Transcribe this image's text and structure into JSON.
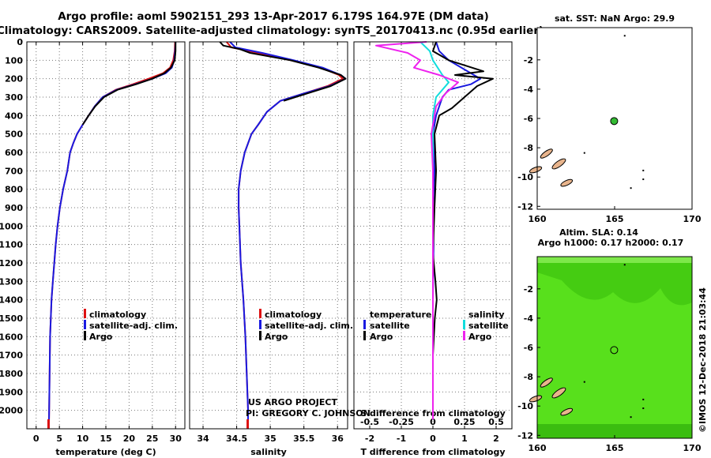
{
  "header": {
    "title_line1": "Argo profile: aoml 5902151_293 13-Apr-2017 6.179S 164.97E (DM data)",
    "title_line2": "Climatology: CARS2009. Satellite-adjusted climatology: synTS_20170413.nc (0.95d earlier)"
  },
  "credits": {
    "line1": "US ARGO PROJECT",
    "line2": "PI: GREGORY C. JOHNSON",
    "imos": "©IMOS 12-Dec-2018 21:03:44"
  },
  "colors": {
    "climatology": "#dd1111",
    "satellite": "#1a1ae0",
    "argo": "#000000",
    "sat_salinity": "#11dddd",
    "argo_salinity": "#ee22ee",
    "land": "#e8b48c",
    "profile_marker": "#33bb33"
  },
  "chart_data": [
    {
      "type": "line",
      "panel": "temperature",
      "xlabel": "temperature (deg C)",
      "ylabel": "",
      "xlim": [
        -2,
        32
      ],
      "ylim": [
        2100,
        0
      ],
      "xticks": [
        0,
        5,
        10,
        15,
        20,
        25,
        30
      ],
      "xtick_labels": [
        "0",
        "5",
        "10",
        "15",
        "20",
        "25",
        "30"
      ],
      "yticks": [
        0,
        100,
        200,
        300,
        400,
        500,
        600,
        700,
        800,
        900,
        1000,
        1100,
        1200,
        1300,
        1400,
        1500,
        1600,
        1700,
        1800,
        1900,
        2000
      ],
      "ytick_labels": [
        "0",
        "100",
        "200",
        "300",
        "400",
        "500",
        "600",
        "700",
        "800",
        "900",
        "1000",
        "1100",
        "1200",
        "1300",
        "1400",
        "1500",
        "1600",
        "1700",
        "1800",
        "1900",
        "2000"
      ],
      "grid": true,
      "legend_position": "lower-right",
      "series": [
        {
          "name": "climatology",
          "color": "#dd1111",
          "x": [
            29.9,
            29.8,
            29.5,
            28.8,
            27.3,
            24.2,
            20.8,
            17.1,
            14.3,
            12.6,
            11.3,
            10.0,
            8.8,
            8.0,
            7.3,
            6.7,
            5.8,
            5.1,
            4.6,
            4.2,
            3.9,
            3.6,
            3.3,
            3.0,
            2.9,
            2.8,
            2.75
          ],
          "y": [
            0,
            50,
            100,
            140,
            170,
            200,
            230,
            260,
            300,
            350,
            400,
            450,
            500,
            550,
            600,
            700,
            800,
            900,
            1000,
            1100,
            1200,
            1300,
            1400,
            1600,
            1800,
            2000,
            2100
          ]
        },
        {
          "name": "satellite-adj. clim.",
          "color": "#1a1ae0",
          "x": [
            30.0,
            29.9,
            29.7,
            29.2,
            27.9,
            25.0,
            21.3,
            17.3,
            14.3,
            12.6,
            11.3,
            10.0,
            8.8,
            8.0,
            7.3,
            6.7,
            5.8,
            5.1,
            4.6,
            4.2,
            3.9,
            3.6,
            3.3,
            3.0,
            2.9,
            2.8,
            2.75
          ],
          "y": [
            0,
            50,
            100,
            140,
            170,
            200,
            230,
            260,
            300,
            350,
            400,
            450,
            500,
            550,
            600,
            700,
            800,
            900,
            1000,
            1100,
            1200,
            1300,
            1400,
            1600,
            1800,
            2000,
            2100
          ]
        },
        {
          "name": "Argo",
          "color": "#000000",
          "x": [
            30.0,
            30.0,
            29.8,
            29.0,
            27.6,
            25.0,
            21.5,
            17.5,
            14.6,
            12.7,
            11.3,
            10.0
          ],
          "y": [
            0,
            50,
            100,
            140,
            170,
            200,
            230,
            260,
            300,
            350,
            400,
            450
          ]
        }
      ]
    },
    {
      "type": "line",
      "panel": "salinity",
      "xlabel": "salinity",
      "xlim": [
        33.8,
        36.15
      ],
      "ylim": [
        2100,
        0
      ],
      "xticks": [
        34,
        34.5,
        35,
        35.5,
        36
      ],
      "xtick_labels": [
        "34",
        "34.5",
        "35",
        "35.5",
        "36"
      ],
      "grid": true,
      "legend_position": "lower-right",
      "series": [
        {
          "name": "climatology",
          "color": "#dd1111",
          "x": [
            34.35,
            34.42,
            34.82,
            35.3,
            35.75,
            36.02,
            36.08,
            35.85,
            35.5,
            35.15,
            34.95,
            34.82,
            34.72,
            34.62,
            34.56,
            34.53,
            34.53,
            34.54,
            34.56,
            34.6,
            34.63,
            34.65,
            34.67,
            34.67
          ],
          "y": [
            0,
            30,
            60,
            100,
            140,
            180,
            200,
            240,
            280,
            320,
            380,
            450,
            500,
            600,
            700,
            800,
            900,
            1000,
            1200,
            1400,
            1600,
            1800,
            2000,
            2100
          ]
        },
        {
          "name": "satellite-adj. clim.",
          "color": "#1a1ae0",
          "x": [
            34.4,
            34.48,
            34.88,
            35.35,
            35.78,
            36.05,
            36.12,
            35.88,
            35.5,
            35.15,
            34.95,
            34.82,
            34.72,
            34.62,
            34.56,
            34.53,
            34.53,
            34.54,
            34.56,
            34.6,
            34.63,
            34.65,
            34.67,
            34.67
          ],
          "y": [
            0,
            30,
            60,
            100,
            140,
            180,
            200,
            240,
            280,
            320,
            380,
            450,
            500,
            600,
            700,
            800,
            900,
            1000,
            1200,
            1400,
            1600,
            1800,
            2000,
            2100
          ]
        },
        {
          "name": "Argo",
          "color": "#000000",
          "x": [
            34.25,
            34.3,
            34.55,
            34.7,
            35.0,
            35.3,
            35.72,
            36.05,
            36.12,
            35.9,
            35.55,
            35.2
          ],
          "y": [
            0,
            20,
            40,
            60,
            80,
            100,
            140,
            180,
            200,
            240,
            280,
            320
          ]
        }
      ]
    },
    {
      "type": "line",
      "panel": "differences",
      "xlabel": "T difference from climatology",
      "xlabel_top": "S difference from climatology",
      "xlim": [
        -2.5,
        2.5
      ],
      "ylim": [
        2100,
        0
      ],
      "xticks": [
        -2,
        -1,
        0,
        1,
        2
      ],
      "xtick_labels": [
        "-2",
        "-1",
        "0",
        "1",
        "2"
      ],
      "xticks_top": [
        -0.5,
        -0.25,
        0,
        0.25,
        0.5
      ],
      "xtick_labels_top": [
        "-0.5",
        "-0.25",
        "0",
        "0.25",
        "0.5"
      ],
      "grid": true,
      "legend_position": "lower-center",
      "legend_group_left": "temperature",
      "legend_group_right": "salinity",
      "series": [
        {
          "name": "satellite",
          "group": "temperature",
          "color": "#1a1ae0",
          "x": [
            0.1,
            0.2,
            0.5,
            1.0,
            1.5,
            1.2,
            0.5,
            0.3,
            0.1,
            0.0,
            0.05,
            0.0,
            0.02,
            0.0,
            0.0,
            0.0
          ],
          "y": [
            0,
            50,
            100,
            150,
            200,
            230,
            260,
            300,
            400,
            500,
            700,
            900,
            1100,
            1400,
            1800,
            2050
          ]
        },
        {
          "name": "Argo",
          "group": "temperature",
          "color": "#000000",
          "x": [
            0.1,
            0.0,
            0.5,
            1.6,
            0.7,
            1.9,
            1.4,
            1.0,
            0.6,
            0.2,
            0.05,
            0.1,
            0.05,
            0.0,
            0.08,
            0.12,
            0.06,
            0.0,
            0.0
          ],
          "y": [
            0,
            50,
            100,
            160,
            180,
            200,
            240,
            300,
            360,
            400,
            500,
            700,
            900,
            1150,
            1300,
            1400,
            1500,
            1700,
            2050
          ]
        },
        {
          "name": "satellite",
          "group": "salinity",
          "color": "#11dddd",
          "x": [
            -0.4,
            -0.1,
            0.0,
            0.3,
            0.5,
            0.1,
            0.0,
            0.0,
            0.0,
            0.0,
            0.0
          ],
          "y": [
            0,
            50,
            100,
            180,
            220,
            300,
            400,
            600,
            1000,
            1500,
            2050
          ]
        },
        {
          "name": "Argo",
          "group": "salinity",
          "color": "#ee22ee",
          "x": [
            -0.2,
            -1.8,
            -0.8,
            -0.4,
            -0.6,
            0.2,
            0.8,
            0.4,
            0.1,
            0.0,
            -0.05,
            0.0,
            0.0
          ],
          "y": [
            0,
            20,
            60,
            100,
            140,
            180,
            220,
            280,
            350,
            450,
            500,
            700,
            2050
          ]
        }
      ]
    },
    {
      "type": "scatter",
      "panel": "map-sst",
      "title": "sat. SST: NaN Argo: 29.9",
      "xlim": [
        160,
        170
      ],
      "ylim": [
        -12.2,
        0.2
      ],
      "xticks": [
        160,
        165,
        170
      ],
      "xtick_labels": [
        "160",
        "165",
        "170"
      ],
      "yticks": [
        -2,
        -4,
        -6,
        -8,
        -10,
        -12
      ],
      "ytick_labels": [
        "-2",
        "-4",
        "-6",
        "-8",
        "-10",
        "-12"
      ],
      "points": [
        {
          "x": 164.97,
          "y": -6.179
        }
      ]
    },
    {
      "type": "heatmap",
      "panel": "map-sla",
      "title_line1": "Altim. SLA: 0.14",
      "title_line2": "Argo h1000: 0.17 h2000: 0.17",
      "xlim": [
        160,
        170
      ],
      "ylim": [
        -12.2,
        0.2
      ],
      "xticks": [
        160,
        165,
        170
      ],
      "xtick_labels": [
        "160",
        "165",
        "170"
      ],
      "yticks": [
        -2,
        -4,
        -6,
        -8,
        -10,
        -12
      ],
      "ytick_labels": [
        "-2",
        "-4",
        "-6",
        "-8",
        "-10",
        "-12"
      ],
      "points": [
        {
          "x": 164.97,
          "y": -6.179
        }
      ]
    }
  ],
  "legends": {
    "profile_panels": [
      {
        "label": "climatology",
        "color": "#dd1111"
      },
      {
        "label": "satellite-adj. clim.",
        "color": "#1a1ae0"
      },
      {
        "label": "Argo",
        "color": "#000000"
      }
    ],
    "diff_header_left": "temperature",
    "diff_header_right": "salinity",
    "diff_left": [
      {
        "label": "satellite",
        "color": "#1a1ae0"
      },
      {
        "label": "Argo",
        "color": "#000000"
      }
    ],
    "diff_right": [
      {
        "label": "satellite",
        "color": "#11dddd"
      },
      {
        "label": "Argo",
        "color": "#ee22ee"
      }
    ]
  }
}
